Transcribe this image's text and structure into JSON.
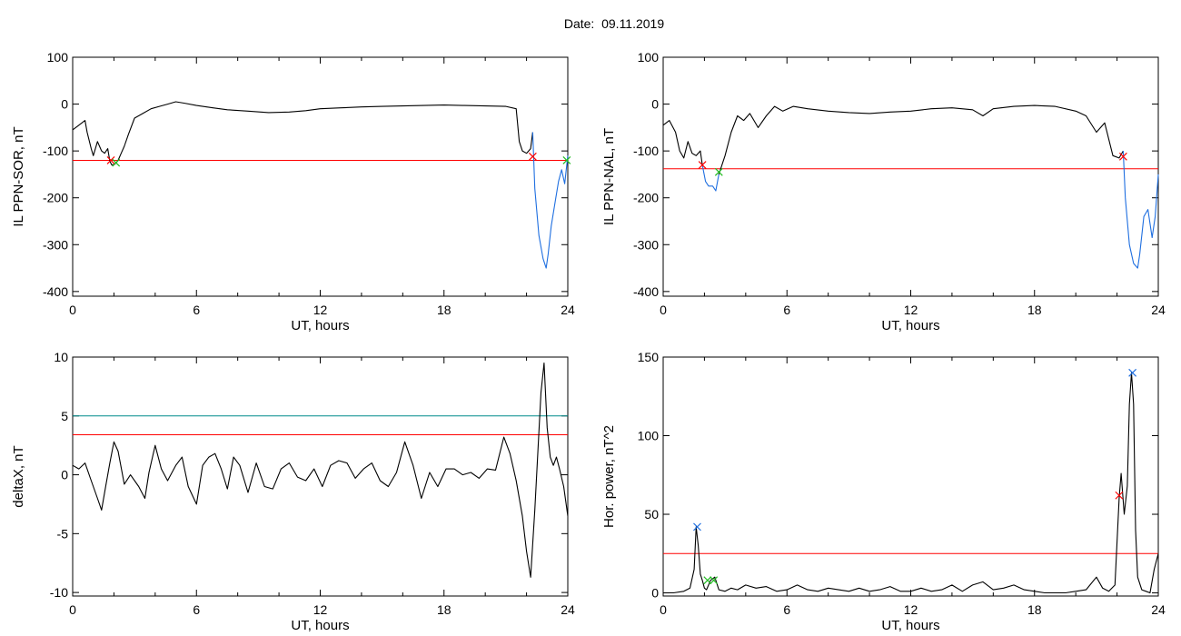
{
  "title": "Date:  09.11.2019",
  "chart_data": [
    {
      "id": "il-ppn-sor",
      "type": "line",
      "title": "",
      "xlabel": "UT, hours",
      "ylabel": "IL PPN-SOR, nT",
      "xlim": [
        0,
        24
      ],
      "ylim": [
        -410,
        100
      ],
      "xticks": [
        0,
        6,
        12,
        18,
        24
      ],
      "yticks": [
        100,
        0,
        -100,
        -200,
        -300,
        -400
      ],
      "grid": false,
      "series": [
        {
          "color": "#000000",
          "x": [
            0,
            0.3,
            0.6,
            0.7,
            0.9,
            1.0,
            1.2,
            1.4,
            1.55,
            1.7,
            1.8,
            1.9,
            2.05,
            2.2,
            2.35,
            2.5,
            2.7,
            3.0,
            3.4,
            3.8,
            4.2,
            4.6,
            5.0,
            5.4,
            6.0,
            6.8,
            7.5,
            8.5,
            9.5,
            10.5,
            11.3,
            12.0,
            13.0,
            14.0,
            15.0,
            16.0,
            17.0,
            18.0,
            19.0,
            20.0,
            21.0,
            21.5,
            21.65,
            21.8,
            22.0,
            22.2,
            22.3
          ],
          "y": [
            -55,
            -45,
            -35,
            -60,
            -95,
            -110,
            -80,
            -100,
            -105,
            -95,
            -122,
            -130,
            -128,
            -120,
            -105,
            -90,
            -65,
            -30,
            -20,
            -10,
            -5,
            0,
            5,
            2,
            -3,
            -8,
            -12,
            -15,
            -18,
            -17,
            -14,
            -10,
            -8,
            -6,
            -5,
            -4,
            -3,
            -2,
            -3,
            -4,
            -5,
            -10,
            -80,
            -100,
            -105,
            -95,
            -60
          ]
        },
        {
          "color": "#1f6fe0",
          "x": [
            22.3,
            22.4,
            22.6,
            22.8,
            22.95,
            23.05,
            23.2,
            23.4,
            23.55,
            23.7,
            23.85,
            24.0
          ],
          "y": [
            -60,
            -180,
            -280,
            -330,
            -350,
            -320,
            -260,
            -205,
            -165,
            -140,
            -170,
            -110
          ]
        }
      ],
      "threshold_lines": [
        {
          "color": "#ff0000",
          "y": -120
        }
      ],
      "markers": [
        {
          "color": "#ff0000",
          "x": 1.85,
          "y": -120
        },
        {
          "color": "#ff0000",
          "x": 22.3,
          "y": -112
        },
        {
          "color": "#22bb22",
          "x": 2.1,
          "y": -125
        },
        {
          "color": "#22bb22",
          "x": 23.95,
          "y": -120
        }
      ]
    },
    {
      "id": "il-ppn-nal",
      "type": "line",
      "title": "",
      "xlabel": "UT, hours",
      "ylabel": "IL PPN-NAL, nT",
      "xlim": [
        0,
        24
      ],
      "ylim": [
        -410,
        100
      ],
      "xticks": [
        0,
        6,
        12,
        18,
        24
      ],
      "yticks": [
        100,
        0,
        -100,
        -200,
        -300,
        -400
      ],
      "grid": false,
      "series": [
        {
          "color": "#000000",
          "x": [
            0,
            0.3,
            0.6,
            0.8,
            1.0,
            1.2,
            1.4,
            1.6,
            1.8,
            1.9
          ],
          "y": [
            -45,
            -35,
            -60,
            -100,
            -115,
            -80,
            -105,
            -110,
            -100,
            -130
          ]
        },
        {
          "color": "#1f6fe0",
          "x": [
            1.9,
            2.05,
            2.2,
            2.4,
            2.55,
            2.7
          ],
          "y": [
            -130,
            -165,
            -175,
            -175,
            -185,
            -150
          ]
        },
        {
          "color": "#000000",
          "x": [
            2.7,
            3.0,
            3.3,
            3.6,
            3.9,
            4.2,
            4.6,
            5.0,
            5.4,
            5.8,
            6.3,
            7.0,
            8.0,
            9.0,
            10.0,
            11.0,
            12.0,
            13.0,
            14.0,
            15.0,
            15.5,
            16.0,
            17.0,
            18.0,
            19.0,
            20.0,
            20.5,
            21.0,
            21.4,
            21.8,
            22.1,
            22.3
          ],
          "y": [
            -150,
            -110,
            -60,
            -25,
            -35,
            -20,
            -50,
            -25,
            -5,
            -15,
            -5,
            -10,
            -15,
            -18,
            -20,
            -17,
            -15,
            -10,
            -8,
            -12,
            -25,
            -10,
            -5,
            -3,
            -5,
            -15,
            -25,
            -60,
            -40,
            -110,
            -115,
            -100
          ]
        },
        {
          "color": "#1f6fe0",
          "x": [
            22.3,
            22.4,
            22.6,
            22.8,
            23.0,
            23.1,
            23.3,
            23.5,
            23.7,
            23.85,
            24.0
          ],
          "y": [
            -100,
            -200,
            -300,
            -340,
            -350,
            -320,
            -240,
            -225,
            -285,
            -240,
            -150
          ]
        }
      ],
      "threshold_lines": [
        {
          "color": "#ff0000",
          "y": -138
        }
      ],
      "markers": [
        {
          "color": "#ff0000",
          "x": 1.9,
          "y": -130
        },
        {
          "color": "#ff0000",
          "x": 22.3,
          "y": -112
        },
        {
          "color": "#22bb22",
          "x": 2.7,
          "y": -145
        }
      ]
    },
    {
      "id": "delta-x",
      "type": "line",
      "title": "",
      "xlabel": "UT, hours",
      "ylabel": "deltaX, nT",
      "xlim": [
        0,
        24
      ],
      "ylim": [
        -10.3,
        10
      ],
      "xticks": [
        0,
        6,
        12,
        18,
        24
      ],
      "yticks": [
        10,
        5,
        0,
        -5,
        -10
      ],
      "ytick_labels": [
        "10",
        "5",
        "0",
        "-5",
        "-10"
      ],
      "grid": false,
      "series": [
        {
          "color": "#000000",
          "x": [
            0,
            0.3,
            0.6,
            0.9,
            1.2,
            1.4,
            1.6,
            1.8,
            2.0,
            2.2,
            2.5,
            2.8,
            3.2,
            3.5,
            3.7,
            4.0,
            4.3,
            4.6,
            5.0,
            5.3,
            5.6,
            6.0,
            6.3,
            6.6,
            6.9,
            7.2,
            7.5,
            7.8,
            8.1,
            8.5,
            8.9,
            9.3,
            9.7,
            10.1,
            10.5,
            10.9,
            11.3,
            11.7,
            12.1,
            12.5,
            12.9,
            13.3,
            13.7,
            14.1,
            14.5,
            14.9,
            15.3,
            15.7,
            16.1,
            16.5,
            16.9,
            17.3,
            17.7,
            18.1,
            18.5,
            18.9,
            19.3,
            19.7,
            20.1,
            20.5,
            20.9,
            21.2,
            21.5,
            21.8,
            22.0,
            22.2,
            22.4,
            22.55,
            22.7,
            22.85,
            23.0,
            23.15,
            23.3,
            23.45,
            23.6,
            23.8,
            24.0
          ],
          "y": [
            0.8,
            0.5,
            1.0,
            -0.5,
            -2.0,
            -3.0,
            -1.0,
            1.0,
            2.8,
            2.0,
            -0.8,
            0,
            -1.0,
            -2.0,
            0.2,
            2.5,
            0.5,
            -0.5,
            0.8,
            1.5,
            -1.0,
            -2.5,
            0.8,
            1.5,
            1.8,
            0.5,
            -1.2,
            1.5,
            0.8,
            -1.5,
            1.0,
            -1.0,
            -1.2,
            0.5,
            1.0,
            -0.2,
            -0.5,
            0.5,
            -1.0,
            0.8,
            1.2,
            1.0,
            -0.3,
            0.5,
            1.0,
            -0.5,
            -1.0,
            0.2,
            2.8,
            0.8,
            -2.0,
            0.2,
            -1.0,
            0.5,
            0.5,
            0,
            0.2,
            -0.3,
            0.5,
            0.4,
            3.2,
            1.8,
            -0.5,
            -3.5,
            -6.5,
            -8.7,
            -3.0,
            2.0,
            7.0,
            9.5,
            4.0,
            1.5,
            0.8,
            1.5,
            0.5,
            -1.0,
            -3.5
          ]
        }
      ],
      "threshold_lines": [
        {
          "color": "#008b8b",
          "y": 5
        },
        {
          "color": "#ff0000",
          "y": 3.4
        }
      ],
      "markers": []
    },
    {
      "id": "hor-power",
      "type": "line",
      "title": "",
      "xlabel": "UT, hours",
      "ylabel": "Hor. power, nT^2",
      "xlim": [
        0,
        24
      ],
      "ylim": [
        -2,
        150
      ],
      "xticks": [
        0,
        6,
        12,
        18,
        24
      ],
      "yticks": [
        150,
        100,
        50,
        0
      ],
      "grid": false,
      "series": [
        {
          "color": "#000000",
          "x": [
            0,
            0.5,
            1.0,
            1.3,
            1.5,
            1.6,
            1.7,
            1.8,
            1.9,
            2.0,
            2.1,
            2.3,
            2.5,
            2.7,
            3.0,
            3.3,
            3.6,
            4.0,
            4.5,
            5.0,
            5.5,
            6.0,
            6.5,
            7.0,
            7.5,
            8.0,
            8.5,
            9.0,
            9.5,
            10.0,
            10.5,
            11.0,
            11.5,
            12.0,
            12.5,
            13.0,
            13.5,
            14.0,
            14.5,
            15.0,
            15.5,
            16.0,
            16.5,
            17.0,
            17.5,
            18.0,
            18.5,
            19.0,
            19.5,
            20.0,
            20.5,
            21.0,
            21.3,
            21.6,
            21.9,
            22.1,
            22.2,
            22.35,
            22.5,
            22.6,
            22.7,
            22.8,
            22.9,
            23.0,
            23.2,
            23.4,
            23.6,
            23.8,
            24.0
          ],
          "y": [
            0,
            0,
            1,
            3,
            15,
            42,
            30,
            12,
            8,
            3,
            2,
            8,
            10,
            2,
            1,
            3,
            2,
            5,
            3,
            4,
            1,
            2,
            5,
            2,
            1,
            3,
            2,
            1,
            3,
            1,
            2,
            4,
            1,
            1,
            3,
            1,
            2,
            5,
            1,
            5,
            7,
            2,
            3,
            5,
            2,
            1,
            0,
            0,
            0,
            1,
            2,
            10,
            3,
            1,
            5,
            60,
            76,
            50,
            68,
            120,
            140,
            120,
            40,
            10,
            2,
            1,
            0,
            15,
            25
          ]
        }
      ],
      "threshold_lines": [
        {
          "color": "#ff0000",
          "y": 25
        }
      ],
      "markers": [
        {
          "color": "#1f6fe0",
          "x": 1.65,
          "y": 42
        },
        {
          "color": "#1f6fe0",
          "x": 22.75,
          "y": 140
        },
        {
          "color": "#ff0000",
          "x": 22.1,
          "y": 62
        },
        {
          "color": "#22bb22",
          "x": 2.15,
          "y": 8
        },
        {
          "color": "#22bb22",
          "x": 2.45,
          "y": 8
        }
      ]
    }
  ]
}
